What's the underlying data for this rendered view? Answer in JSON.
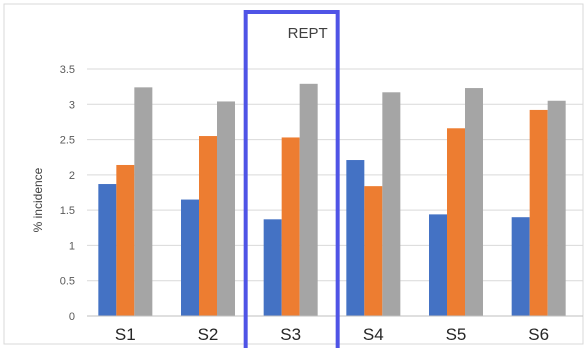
{
  "chart_data": {
    "type": "bar",
    "title": "",
    "xlabel": "",
    "ylabel": "% incidence",
    "ylim": [
      0,
      3.5
    ],
    "yticks": [
      "0",
      "0.5",
      "1",
      "1.5",
      "2",
      "2.5",
      "3",
      "3.5"
    ],
    "grid": true,
    "legend": "none",
    "categories": [
      "S1",
      "S2",
      "S3",
      "S4",
      "S5",
      "S6"
    ],
    "series": [
      {
        "color": "#4472C4",
        "values": [
          1.87,
          1.65,
          1.37,
          2.21,
          1.44,
          1.4
        ]
      },
      {
        "color": "#ED7D31",
        "values": [
          2.14,
          2.55,
          2.53,
          1.84,
          2.66,
          2.92
        ]
      },
      {
        "color": "#A5A5A5",
        "values": [
          3.24,
          3.04,
          3.29,
          3.17,
          3.23,
          3.05
        ]
      }
    ],
    "annotation": {
      "text": "REPT",
      "highlight_category": "S3",
      "box_color": "#4F54E6"
    }
  }
}
